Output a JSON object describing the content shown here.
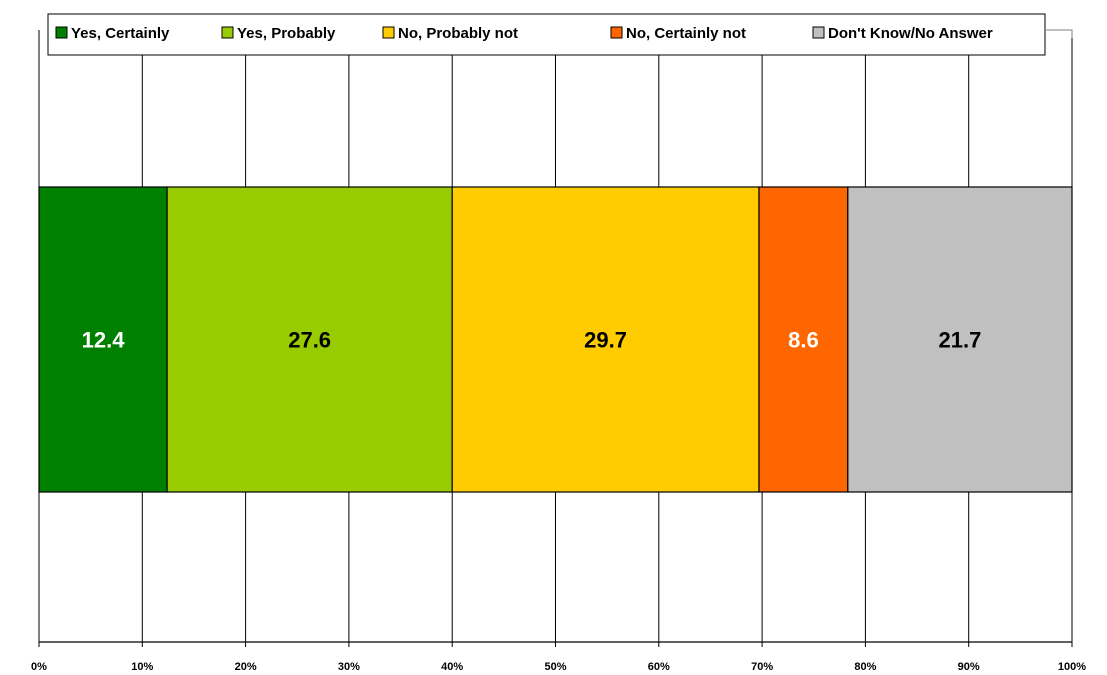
{
  "chart_data": {
    "type": "bar",
    "orientation": "horizontal",
    "stacked": true,
    "percent_stacked": true,
    "title": "",
    "xlabel": "",
    "ylabel": "",
    "xlim": [
      0,
      100
    ],
    "x_ticks": [
      "0%",
      "10%",
      "20%",
      "30%",
      "40%",
      "50%",
      "60%",
      "70%",
      "80%",
      "90%",
      "100%"
    ],
    "grid": "vertical",
    "legend_position": "top",
    "categories": [
      ""
    ],
    "series": [
      {
        "name": "Yes, Certainly",
        "values": [
          12.4
        ],
        "label": "12.4",
        "color": "#008000",
        "label_color": "#ffffff"
      },
      {
        "name": "Yes, Probably",
        "values": [
          27.6
        ],
        "label": "27.6",
        "color": "#99cc00",
        "label_color": "#000000"
      },
      {
        "name": "No, Probably not",
        "values": [
          29.7
        ],
        "label": "29.7",
        "color": "#ffcc00",
        "label_color": "#000000"
      },
      {
        "name": "No, Certainly not",
        "values": [
          8.6
        ],
        "label": "8.6",
        "color": "#ff6600",
        "label_color": "#ffffff"
      },
      {
        "name": "Don't Know/No Answer",
        "values": [
          21.7
        ],
        "label": "21.7",
        "color": "#c0c0c0",
        "label_color": "#000000"
      }
    ]
  }
}
